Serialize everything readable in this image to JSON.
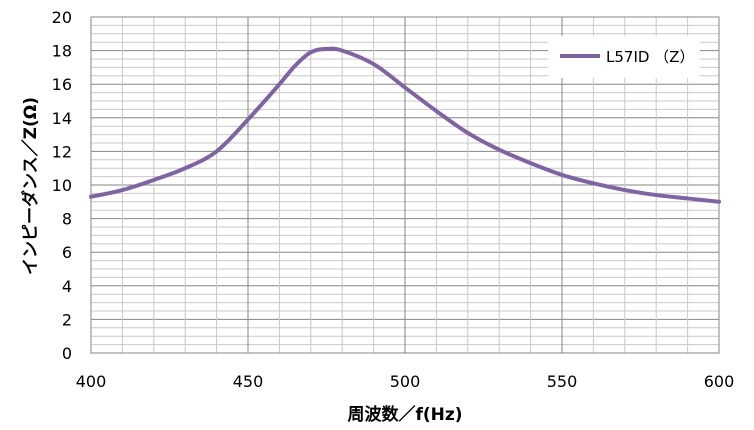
{
  "chart_data": {
    "type": "line",
    "xlabel": "周波数／f(Hz)",
    "ylabel": "インピーダンス／Z(Ω)",
    "xlim": [
      400,
      600
    ],
    "ylim": [
      0,
      20
    ],
    "x_ticks": [
      400,
      450,
      500,
      550,
      600
    ],
    "y_ticks": [
      0,
      2,
      4,
      6,
      8,
      10,
      12,
      14,
      16,
      18,
      20
    ],
    "grid": true,
    "legend_position": "top-right",
    "series": [
      {
        "name": "L57ID （Z）",
        "color": "#7f64a2",
        "x": [
          400,
          410,
          420,
          430,
          440,
          450,
          460,
          465,
          470,
          475,
          480,
          490,
          500,
          510,
          520,
          530,
          540,
          550,
          560,
          570,
          580,
          590,
          600
        ],
        "y": [
          9.3,
          9.7,
          10.3,
          11.0,
          12.0,
          13.9,
          16.0,
          17.1,
          17.9,
          18.1,
          18.0,
          17.2,
          15.8,
          14.4,
          13.1,
          12.1,
          11.3,
          10.6,
          10.1,
          9.7,
          9.4,
          9.2,
          9.0
        ]
      }
    ]
  }
}
